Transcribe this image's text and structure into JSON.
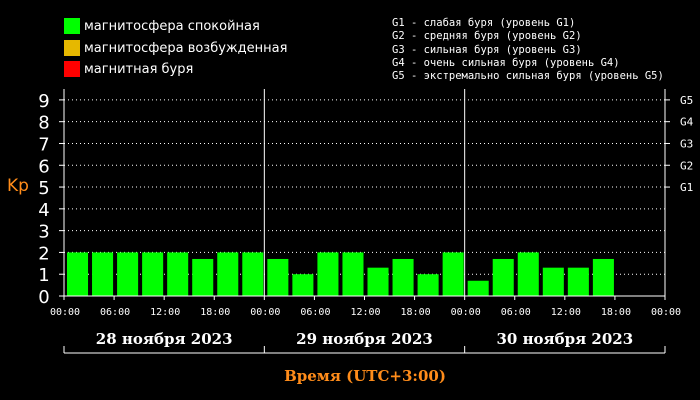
{
  "legend": {
    "items": [
      {
        "label": "магнитосфера спокойная",
        "color": "#00ff00"
      },
      {
        "label": "магнитосфера возбужденная",
        "color": "#e6b800"
      },
      {
        "label": "магнитная буря",
        "color": "#ff0000"
      }
    ],
    "storms": [
      "G1 - слабая буря (уровень G1)",
      "G2 - средняя буря (уровень G2)",
      "G3 - сильная буря (уровень G3)",
      "G4 - очень сильная буря (уровень G4)",
      "G5 - экстремально сильная буря (уровень G5)"
    ]
  },
  "chart_data": {
    "type": "bar",
    "ylabel": "Kp",
    "xlabel": "Время (UTC+3:00)",
    "ylim": [
      0,
      9.5
    ],
    "y_ticks": [
      "0",
      "1",
      "2",
      "3",
      "4",
      "5",
      "6",
      "7",
      "8",
      "9"
    ],
    "right_ticks": [
      {
        "label": "G1",
        "y": 5
      },
      {
        "label": "G2",
        "y": 6
      },
      {
        "label": "G3",
        "y": 7
      },
      {
        "label": "G4",
        "y": 8
      },
      {
        "label": "G5",
        "y": 9
      }
    ],
    "time_ticks": [
      "00:00",
      "06:00",
      "12:00",
      "18:00",
      "00:00",
      "06:00",
      "12:00",
      "18:00",
      "00:00",
      "06:00",
      "12:00",
      "18:00",
      "00:00"
    ],
    "days": [
      "28 ноября 2023",
      "29 ноября 2023",
      "30 ноября 2023"
    ],
    "intervals_per_day": 8,
    "values": [
      2.0,
      2.0,
      2.0,
      2.0,
      2.0,
      1.7,
      2.0,
      2.0,
      1.7,
      1.0,
      2.0,
      2.0,
      1.3,
      1.7,
      1.0,
      2.0,
      0.7,
      1.7,
      2.0,
      1.3,
      1.3,
      1.7
    ],
    "grid": true,
    "bar_color": "#00ff00",
    "axis_label_color": "#ff8c1a"
  }
}
